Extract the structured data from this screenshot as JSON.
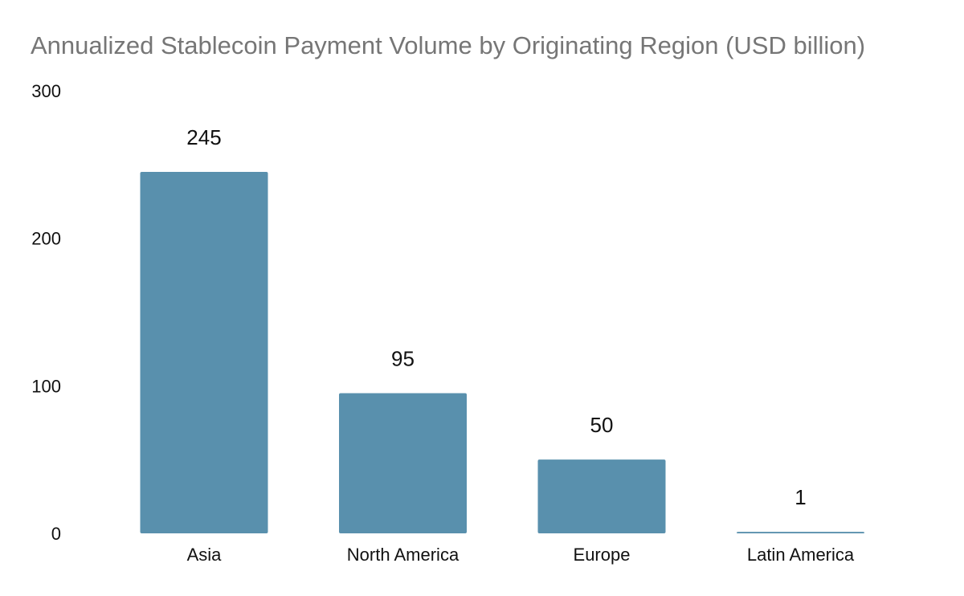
{
  "chart_data": {
    "type": "bar",
    "title": "Annualized Stablecoin Payment Volume by Originating Region (USD billion)",
    "categories": [
      "Asia",
      "North America",
      "Europe",
      "Latin America"
    ],
    "values": [
      245,
      95,
      50,
      1
    ],
    "data_labels": [
      "245",
      "95",
      "50",
      "1"
    ],
    "ylim": [
      0,
      300
    ],
    "y_ticks": [
      0,
      100,
      200,
      300
    ],
    "y_tick_labels": [
      "0",
      "100",
      "200",
      "300"
    ],
    "xlabel": "",
    "ylabel": "",
    "grid": false,
    "legend": "none",
    "colors": {
      "bar": "#5990ad",
      "title": "#767676",
      "text": "#111111"
    }
  }
}
